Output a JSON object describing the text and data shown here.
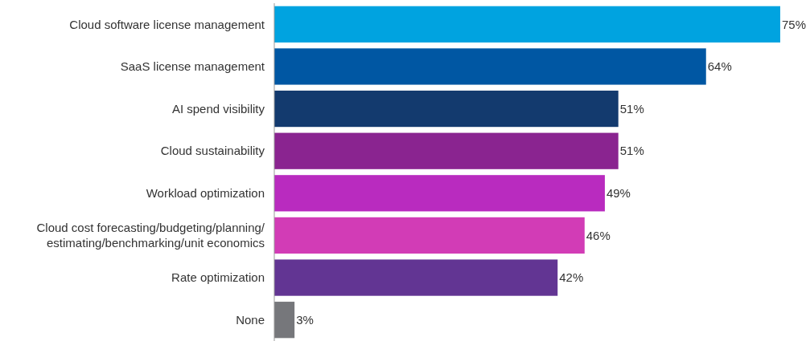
{
  "chart_data": {
    "type": "bar",
    "orientation": "horizontal",
    "value_labels": [
      "75%",
      "64%",
      "51%",
      "51%",
      "49%",
      "46%",
      "42%",
      "3%"
    ],
    "categories": [
      "Cloud software license management",
      "SaaS license management",
      "AI spend visibility",
      "Cloud sustainability",
      "Workload optimization",
      "Cloud cost forecasting/budgeting/planning/estimating/benchmarking/unit economics",
      "Rate optimization",
      "None"
    ],
    "values": [
      75,
      64,
      51,
      51,
      49,
      46,
      42,
      3
    ],
    "colors": [
      "#00a3e0",
      "#0057a3",
      "#133a6e",
      "#8a2490",
      "#b92bbf",
      "#d23cb6",
      "#623593",
      "#76777b"
    ]
  }
}
